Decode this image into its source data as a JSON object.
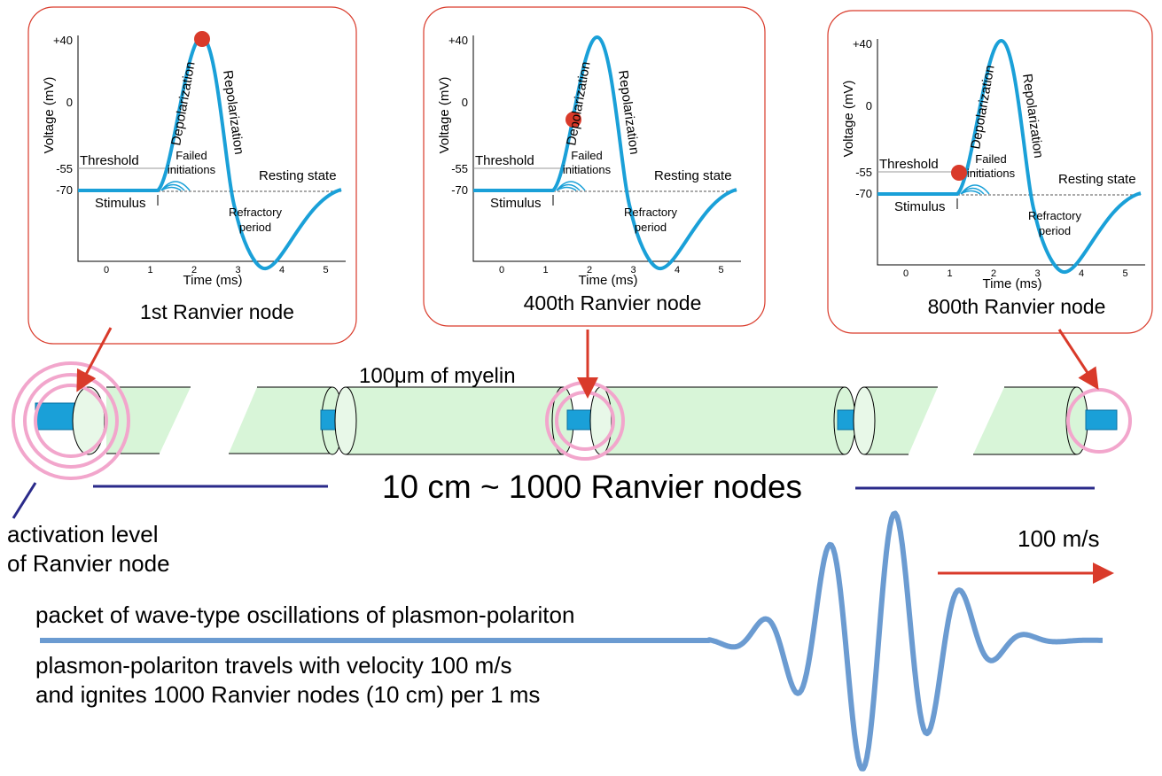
{
  "plot": {
    "y_axis_label": "Voltage (mV)",
    "y_ticks": [
      "+40",
      "0",
      "-55",
      "-70"
    ],
    "x_axis_label": "Time (ms)",
    "x_ticks": [
      "0",
      "1",
      "2",
      "3",
      "4",
      "5"
    ],
    "threshold": "Threshold",
    "failed": "Failed",
    "initiations": "initiations",
    "depolarization": "Depolarization",
    "repolarization": "Repolarization",
    "resting_state": "Resting state",
    "stimulus": "Stimulus",
    "refractory": "Refractory",
    "period": "period"
  },
  "panels": [
    {
      "label": "1st Ranvier node"
    },
    {
      "label": "400th Ranvier node"
    },
    {
      "label": "800th Ranvier node"
    }
  ],
  "myelin_label": "100μm of myelin",
  "distance_label": "10 cm ~ 1000 Ranvier nodes",
  "activation_label": [
    "activation level",
    "of Ranvier node"
  ],
  "velocity_label": "100 m/s",
  "packet_label": "packet of wave-type oscillations of plasmon-polariton",
  "travel_label": [
    "plasmon-polariton travels with velocity 100 m/s",
    "and ignites 1000 Ranvier nodes (10 cm) per 1 ms"
  ]
}
